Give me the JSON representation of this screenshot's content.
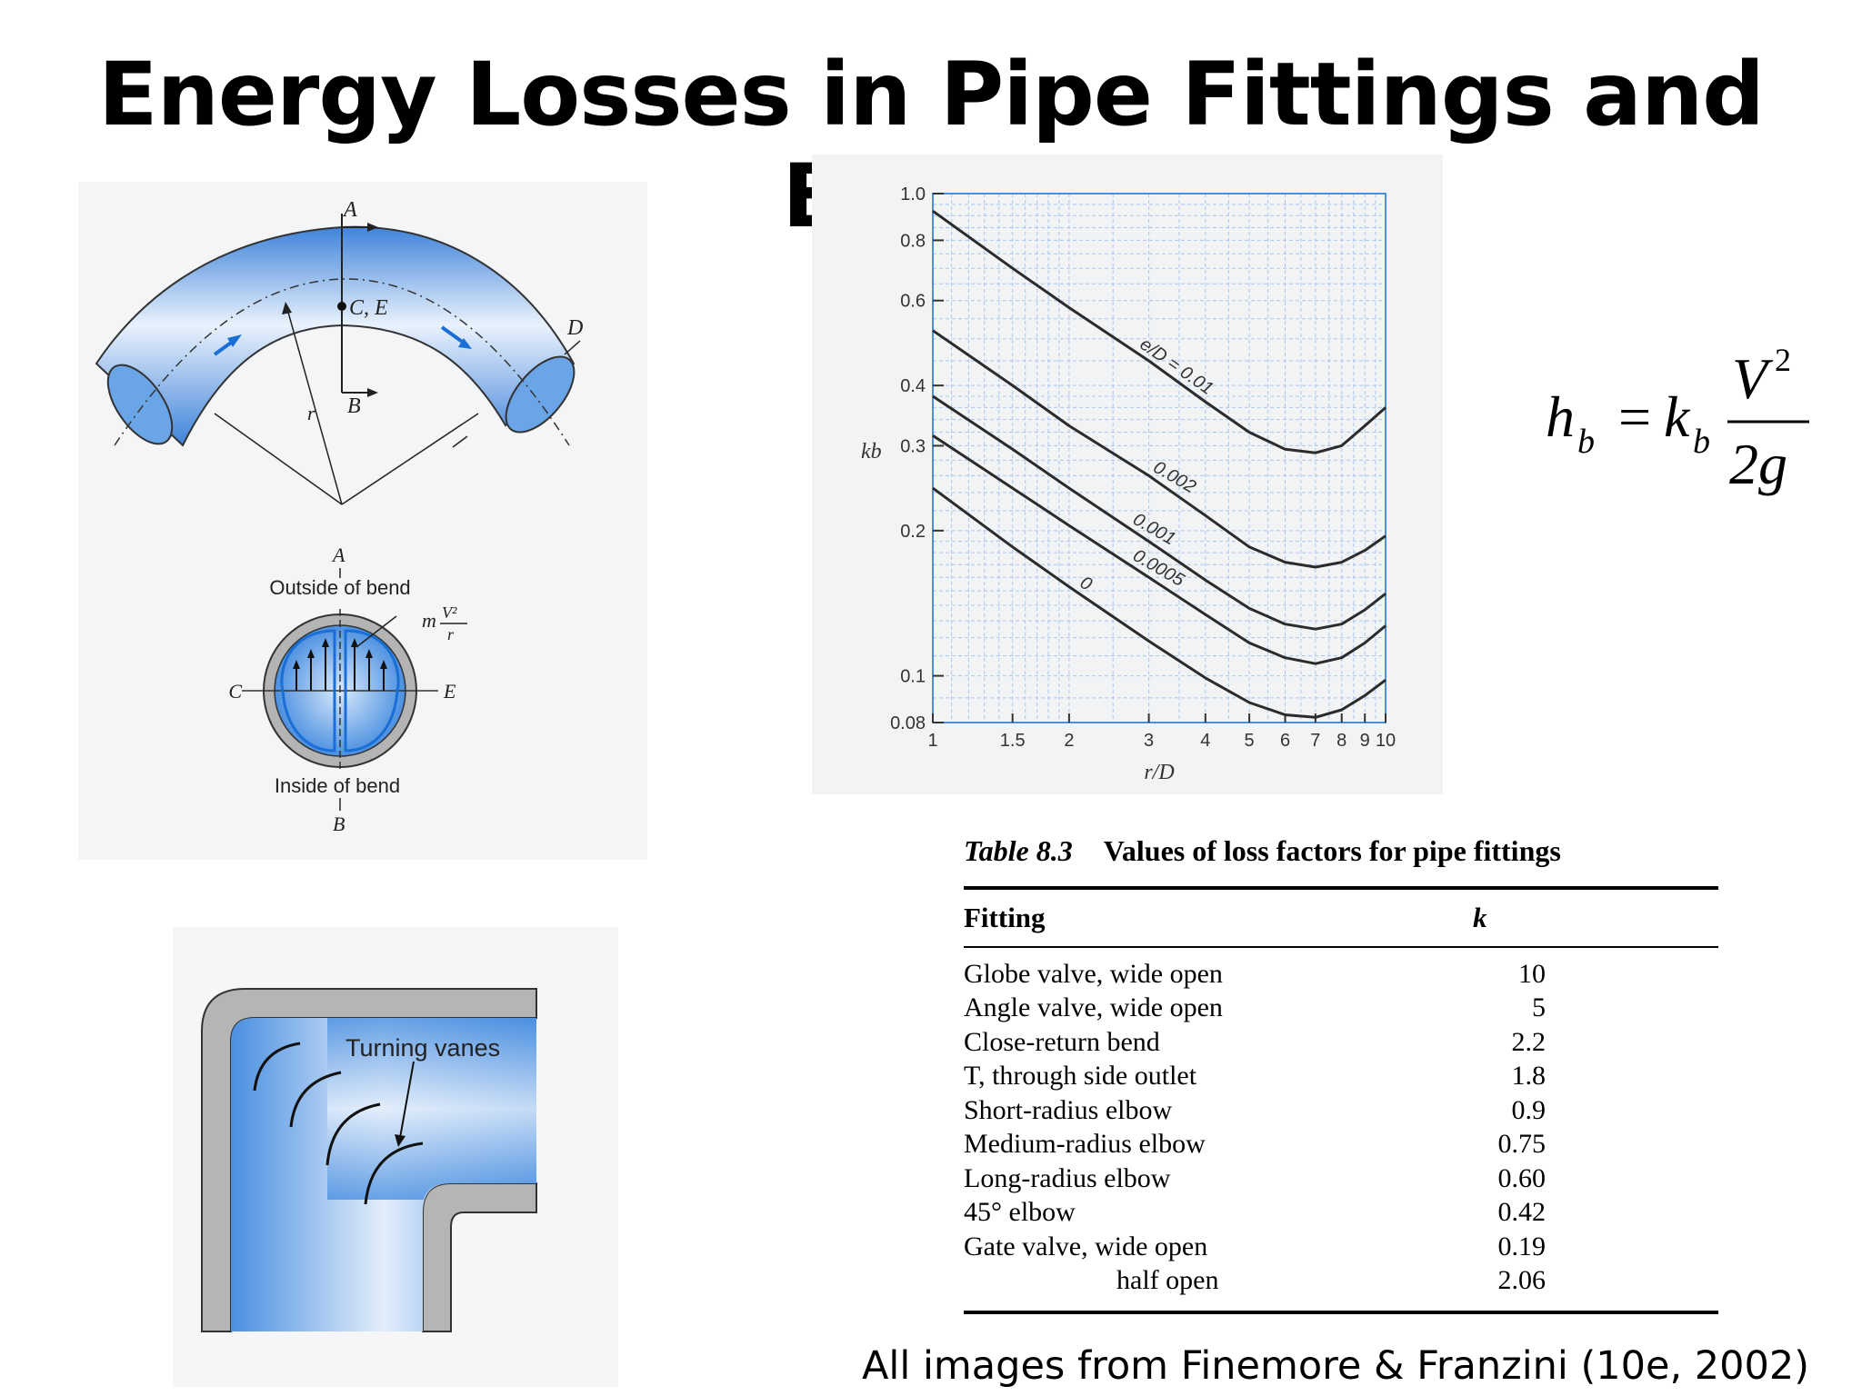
{
  "slide": {
    "title": "Energy Losses in Pipe Fittings and Bends",
    "credit": "All images from Finemore & Franzini (10e, 2002)"
  },
  "bend_figure": {
    "labels": {
      "a_top": "A",
      "ce": "C, E",
      "b_top": "B",
      "d": "D",
      "r": "r",
      "a_cross": "A",
      "outside": "Outside of bend",
      "c": "C",
      "e": "E",
      "inside": "Inside of bend",
      "b_cross": "B",
      "force_m": "m",
      "force_num": "V²",
      "force_den": "r"
    },
    "colors": {
      "fluid": "#4a8fe0",
      "pipe_wall": "#a7a7a7"
    }
  },
  "vanes_figure": {
    "label": "Turning vanes"
  },
  "formula": {
    "lhs": "h",
    "lhs_sub": "b",
    "equals": "=",
    "k": "k",
    "k_sub": "b",
    "numerator": "V",
    "numerator_exp": "2",
    "denominator": "2g"
  },
  "chart_data": {
    "type": "line",
    "xlabel": "r/D",
    "ylabel": "kb",
    "xscale": "log",
    "yscale": "log",
    "xlim": [
      1,
      10
    ],
    "ylim": [
      0.08,
      1.0
    ],
    "x_ticks": [
      "1",
      "1.5",
      "2",
      "3",
      "4",
      "5",
      "6",
      "7",
      "8",
      "9",
      "10"
    ],
    "y_ticks": [
      "1.0",
      "0.8",
      "0.6",
      "0.4",
      "0.3",
      "0.2",
      "0.1",
      "0.08"
    ],
    "grid": true,
    "series": [
      {
        "name": "e/D = 0.01",
        "x": [
          1,
          1.5,
          2,
          3,
          4,
          5,
          6,
          7,
          8,
          9,
          10
        ],
        "y": [
          0.92,
          0.7,
          0.58,
          0.45,
          0.37,
          0.32,
          0.295,
          0.29,
          0.3,
          0.33,
          0.36
        ]
      },
      {
        "name": "0.002",
        "x": [
          1,
          1.5,
          2,
          3,
          4,
          5,
          6,
          7,
          8,
          9,
          10
        ],
        "y": [
          0.52,
          0.4,
          0.33,
          0.26,
          0.215,
          0.185,
          0.172,
          0.168,
          0.172,
          0.182,
          0.195
        ]
      },
      {
        "name": "0.001",
        "x": [
          1,
          1.5,
          2,
          3,
          4,
          5,
          6,
          7,
          8,
          9,
          10
        ],
        "y": [
          0.38,
          0.295,
          0.245,
          0.19,
          0.158,
          0.138,
          0.128,
          0.125,
          0.128,
          0.137,
          0.148
        ]
      },
      {
        "name": "0.0005",
        "x": [
          1,
          1.5,
          2,
          3,
          4,
          5,
          6,
          7,
          8,
          9,
          10
        ],
        "y": [
          0.315,
          0.245,
          0.205,
          0.16,
          0.134,
          0.117,
          0.109,
          0.106,
          0.109,
          0.117,
          0.127
        ]
      },
      {
        "name": "0",
        "x": [
          1,
          1.5,
          2,
          3,
          4,
          5,
          6,
          7,
          8,
          9,
          10
        ],
        "y": [
          0.245,
          0.185,
          0.153,
          0.118,
          0.099,
          0.088,
          0.083,
          0.082,
          0.085,
          0.091,
          0.098
        ]
      }
    ]
  },
  "table": {
    "number": "Table 8.3",
    "caption": "Values of loss factors for pipe fittings",
    "headers": [
      "Fitting",
      "k"
    ],
    "rows": [
      {
        "fitting": "Globe valve, wide open",
        "k": "10"
      },
      {
        "fitting": "Angle valve, wide open",
        "k": "5"
      },
      {
        "fitting": "Close-return bend",
        "k": "2.2"
      },
      {
        "fitting": "T, through side outlet",
        "k": "1.8"
      },
      {
        "fitting": "Short-radius elbow",
        "k": "0.9"
      },
      {
        "fitting": "Medium-radius elbow",
        "k": "0.75"
      },
      {
        "fitting": "Long-radius elbow",
        "k": "0.60"
      },
      {
        "fitting": "45° elbow",
        "k": "0.42"
      },
      {
        "fitting": "Gate valve, wide open",
        "k": "0.19"
      },
      {
        "fitting": "half open",
        "k": "2.06"
      }
    ]
  }
}
